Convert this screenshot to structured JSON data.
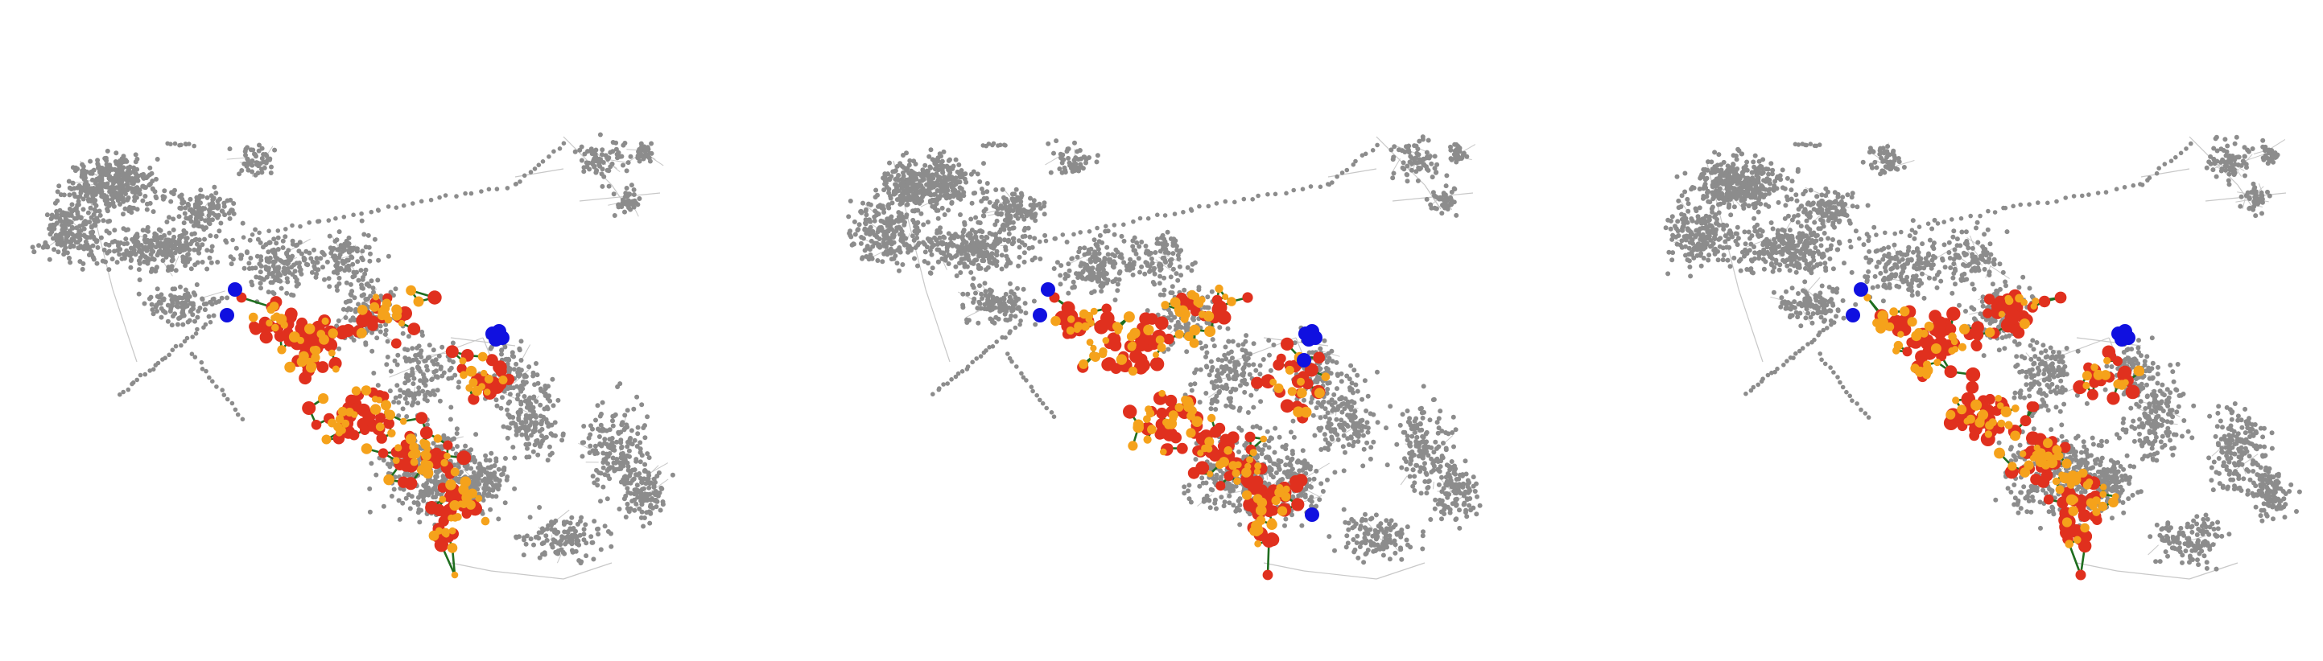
{
  "figure": {
    "panels": [
      {
        "id": "panel-1",
        "blue_cluster": "top"
      },
      {
        "id": "panel-2",
        "blue_cluster": "top-and-bottom"
      },
      {
        "id": "panel-3",
        "blue_cluster": "top"
      }
    ],
    "colors": {
      "background_node": "#8c8c8c",
      "background_edge": "#c8c8c8",
      "route_edge": "#1f6e1f",
      "red_node": "#e0301e",
      "orange_node": "#f5a21b",
      "blue_node": "#1010e0"
    },
    "legend": null,
    "title": null
  }
}
